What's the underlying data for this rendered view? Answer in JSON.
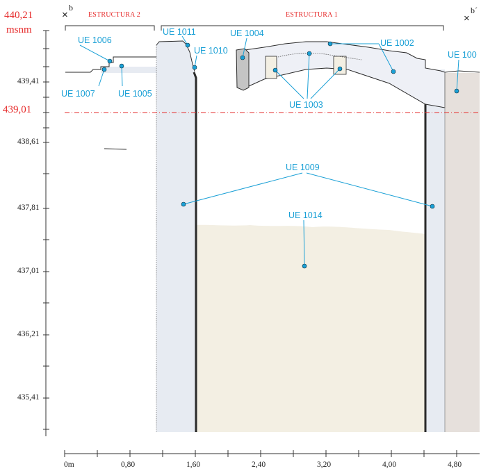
{
  "colors": {
    "accent_red": "#e62b2b",
    "label_blue": "#1aa0d6",
    "wall_fill": "#e7ebf2",
    "fill_deposit": "#f3efe3",
    "right_fill": "#e6e0dc",
    "vault_fill": "#eef0f6",
    "cap_fill": "#c4c4c4",
    "outline": "#2a2a2a"
  },
  "datum": {
    "top_value": "440,21",
    "unit": "msnm",
    "marker_b": "b",
    "marker_b_prime": "b´",
    "reference_level": "439,01"
  },
  "structures": {
    "estructura_2": "ESTRUCTURA 2",
    "estructura_1": "ESTRUCTURA 1"
  },
  "vertical_scale": {
    "labels": [
      "439,41",
      "438,61",
      "437,81",
      "437,01",
      "436,21",
      "435,41"
    ]
  },
  "horizontal_scale": {
    "labels": [
      "0m",
      "0,80",
      "1,60",
      "2,40",
      "3,20",
      "4,00",
      "4,80"
    ]
  },
  "units": {
    "ue_1006": "UE 1006",
    "ue_1007": "UE 1007",
    "ue_1005": "UE 1005",
    "ue_1011": "UE 1011",
    "ue_1010": "UE 1010",
    "ue_1004": "UE 1004",
    "ue_1002": "UE 1002",
    "ue_100": "UE 100",
    "ue_1003": "UE 1003",
    "ue_1009": "UE 1009",
    "ue_1014": "UE 1014"
  }
}
